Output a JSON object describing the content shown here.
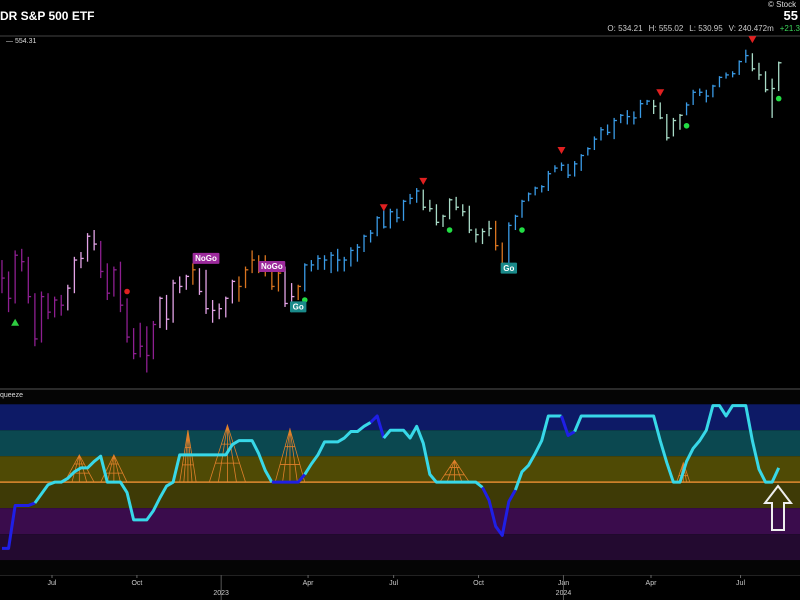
{
  "header": {
    "title": "DR S&P 500 ETF",
    "last": "55",
    "source": "© Stock",
    "price_label": "554.31",
    "ohlc": [
      {
        "label": "O:",
        "value": "534.21"
      },
      {
        "label": "H:",
        "value": "555.02"
      },
      {
        "label": "L:",
        "value": "530.95"
      },
      {
        "label": "V:",
        "value": "240.472m"
      }
    ],
    "change": "+21.3"
  },
  "chart_data": [
    {
      "type": "ohlc",
      "log_scale": true,
      "ylim": [
        340,
        575
      ],
      "xlim": [
        -0.3,
        118.5
      ],
      "close": [
        401,
        389,
        415,
        411,
        390,
        366,
        390,
        381,
        388,
        385,
        395,
        412,
        413,
        427,
        422,
        405,
        392,
        406,
        385,
        367,
        358,
        362,
        357,
        374,
        389,
        377,
        398,
        396,
        402,
        406,
        393,
        383,
        382,
        383,
        389,
        399,
        396,
        406,
        412,
        408,
        407,
        396,
        404,
        386,
        390,
        396,
        409,
        409,
        413,
        412,
        415,
        412,
        412,
        418,
        420,
        427,
        429,
        439,
        433,
        443,
        439,
        450,
        452,
        457,
        446,
        445,
        436,
        440,
        451,
        446,
        443,
        431,
        428,
        430,
        432,
        421,
        410,
        434,
        440,
        450,
        455,
        459,
        460,
        469,
        473,
        475,
        468,
        476,
        482,
        487,
        494,
        501,
        499,
        508,
        512,
        511,
        510,
        521,
        523,
        519,
        510,
        495,
        508,
        512,
        520,
        530,
        530,
        527,
        535,
        542,
        544,
        545,
        555,
        560,
        549,
        544,
        532,
        533,
        554
      ],
      "high": [
        412,
        405,
        418,
        419,
        414,
        392,
        393,
        392,
        390,
        391,
        397,
        414,
        417,
        429,
        431,
        424,
        410,
        408,
        411,
        389,
        372,
        375,
        373,
        376,
        390,
        391,
        400,
        402,
        403,
        410,
        407,
        406,
        388,
        386,
        390,
        400,
        402,
        408,
        418,
        415,
        415,
        408,
        405,
        408,
        398,
        397,
        410,
        412,
        415,
        415,
        417,
        419,
        414,
        420,
        422,
        428,
        431,
        440,
        444,
        445,
        445,
        451,
        455,
        459,
        458,
        451,
        448,
        441,
        452,
        453,
        448,
        447,
        432,
        432,
        437,
        437,
        423,
        436,
        441,
        451,
        456,
        460,
        461,
        471,
        475,
        477,
        476,
        478,
        483,
        488,
        496,
        503,
        505,
        510,
        513,
        516,
        515,
        524,
        524,
        524,
        522,
        513,
        510,
        513,
        522,
        532,
        533,
        532,
        536,
        543,
        546,
        547,
        556,
        565,
        562,
        554,
        547,
        541,
        555
      ],
      "low": [
        392,
        381,
        386,
        405,
        386,
        362,
        364,
        377,
        378,
        379,
        382,
        392,
        407,
        411,
        418,
        401,
        388,
        390,
        381,
        364,
        355,
        356,
        348,
        355,
        372,
        371,
        375,
        392,
        394,
        397,
        391,
        380,
        375,
        377,
        378,
        386,
        387,
        395,
        404,
        404,
        402,
        394,
        393,
        384,
        381,
        388,
        393,
        405,
        406,
        406,
        404,
        405,
        405,
        408,
        411,
        417,
        423,
        427,
        432,
        432,
        436,
        437,
        448,
        449,
        444,
        443,
        434,
        433,
        438,
        444,
        440,
        429,
        423,
        422,
        427,
        418,
        409,
        410,
        431,
        439,
        450,
        454,
        456,
        457,
        470,
        471,
        466,
        467,
        471,
        482,
        486,
        493,
        497,
        494,
        506,
        505,
        505,
        510,
        520,
        513,
        509,
        493,
        496,
        501,
        512,
        520,
        527,
        522,
        526,
        534,
        541,
        542,
        544,
        554,
        547,
        540,
        530,
        510,
        531
      ],
      "regimes": [
        {
          "from": 0,
          "to": 9,
          "color": "#8e1f91"
        },
        {
          "from": 10,
          "to": 14,
          "color": "#e3a3e6"
        },
        {
          "from": 15,
          "to": 23,
          "color": "#8e1f91"
        },
        {
          "from": 24,
          "to": 28,
          "color": "#e3a3e6"
        },
        {
          "from": 29,
          "to": 29,
          "color": "#d9741f"
        },
        {
          "from": 30,
          "to": 35,
          "color": "#e3a3e6"
        },
        {
          "from": 36,
          "to": 42,
          "color": "#d9741f"
        },
        {
          "from": 43,
          "to": 44,
          "color": "#e3a3e6"
        },
        {
          "from": 45,
          "to": 45,
          "color": "#d9741f"
        },
        {
          "from": 46,
          "to": 63,
          "color": "#3a9be6"
        },
        {
          "from": 64,
          "to": 74,
          "color": "#a9dcc8"
        },
        {
          "from": 75,
          "to": 76,
          "color": "#d9741f"
        },
        {
          "from": 77,
          "to": 98,
          "color": "#3a9be6"
        },
        {
          "from": 99,
          "to": 103,
          "color": "#a9dcc8"
        },
        {
          "from": 104,
          "to": 113,
          "color": "#3a9be6"
        },
        {
          "from": 114,
          "to": 118,
          "color": "#a9dcc8"
        }
      ],
      "markers": [
        {
          "shape": "triangle-up",
          "x": 2,
          "value": 375,
          "color": "#2ecc40"
        },
        {
          "shape": "dot",
          "x": 19,
          "value": 393,
          "color": "#e02020"
        },
        {
          "shape": "dot",
          "x": 46,
          "value": 388,
          "color": "#22dd44"
        },
        {
          "shape": "triangle-down",
          "x": 58,
          "value": 446,
          "color": "#e02020"
        },
        {
          "shape": "triangle-down",
          "x": 64,
          "value": 464,
          "color": "#e02020"
        },
        {
          "shape": "dot",
          "x": 68,
          "value": 431,
          "color": "#22dd44"
        },
        {
          "shape": "dot",
          "x": 79,
          "value": 431,
          "color": "#22dd44"
        },
        {
          "shape": "triangle-down",
          "x": 85,
          "value": 486,
          "color": "#e02020"
        },
        {
          "shape": "triangle-down",
          "x": 100,
          "value": 530,
          "color": "#e02020"
        },
        {
          "shape": "dot",
          "x": 104,
          "value": 504,
          "color": "#22dd44"
        },
        {
          "shape": "triangle-down",
          "x": 114,
          "value": 574,
          "color": "#e02020"
        },
        {
          "shape": "dot",
          "x": 118,
          "value": 525,
          "color": "#22dd44"
        }
      ],
      "labels": [
        {
          "text": "NoGo",
          "x": 31,
          "value": 413,
          "color": "#9c2a9c"
        },
        {
          "text": "NoGo",
          "x": 41,
          "value": 408,
          "color": "#9c2a9c"
        },
        {
          "text": "Go",
          "x": 45,
          "value": 384,
          "color": "#1a8a8a"
        },
        {
          "text": "Go",
          "x": 77,
          "value": 407,
          "color": "#1a8a8a"
        }
      ]
    },
    {
      "type": "line",
      "name": "queeze",
      "ylim": [
        -7.15,
        7.1
      ],
      "xlim": [
        -0.3,
        118.5
      ],
      "zero_line": 0,
      "zero_color": "#e08a30",
      "values": [
        -5.1,
        -5.1,
        -1.8,
        -1.8,
        -1.8,
        -1.6,
        -0.9,
        -0.2,
        0,
        0,
        0.3,
        0.8,
        1.1,
        1.1,
        1.6,
        2,
        0,
        0,
        0,
        -0.8,
        -2.9,
        -2.9,
        -2.9,
        -2.2,
        -1.2,
        -0.3,
        0,
        2.1,
        2.1,
        2.1,
        2.1,
        2.1,
        2.1,
        2.1,
        2.1,
        2.9,
        3.2,
        3.2,
        3.2,
        2.2,
        0.9,
        0,
        0,
        0,
        0,
        0,
        0.6,
        1.4,
        2.1,
        3.1,
        3.1,
        3.1,
        3.4,
        3.9,
        3.9,
        4.3,
        4.6,
        5.1,
        3.4,
        4,
        4,
        4,
        3.4,
        4.3,
        3,
        0.6,
        0,
        0,
        0,
        0,
        0,
        0,
        0,
        -0.4,
        -1.4,
        -3.4,
        -4.1,
        -1.5,
        -0.6,
        0.8,
        1.3,
        2.2,
        3.2,
        5.1,
        5.1,
        5.1,
        3.6,
        3.9,
        5.1,
        5.1,
        5.1,
        5.1,
        5.1,
        5.1,
        5.1,
        5.1,
        5.1,
        5.1,
        5.1,
        5.1,
        3.2,
        1.5,
        0,
        0,
        1.6,
        2.6,
        3.2,
        4,
        5.9,
        5.9,
        5.1,
        5.9,
        5.9,
        5.9,
        3.2,
        1,
        0,
        0,
        1.1
      ],
      "segments": [
        {
          "from": 0,
          "to": 5,
          "color": "#1f1fe6"
        },
        {
          "from": 5,
          "to": 41,
          "color": "#38d8e8"
        },
        {
          "from": 41,
          "to": 46,
          "color": "#1f1fe6"
        },
        {
          "from": 46,
          "to": 56,
          "color": "#38d8e8"
        },
        {
          "from": 56,
          "to": 58,
          "color": "#1f1fe6"
        },
        {
          "from": 58,
          "to": 73,
          "color": "#38d8e8"
        },
        {
          "from": 73,
          "to": 78,
          "color": "#1f1fe6"
        },
        {
          "from": 78,
          "to": 85,
          "color": "#38d8e8"
        },
        {
          "from": 85,
          "to": 87,
          "color": "#1f1fe6"
        },
        {
          "from": 87,
          "to": 118,
          "color": "#38d8e8"
        }
      ],
      "bands": [
        {
          "from": 4,
          "to": 6,
          "color": "#0d1a66"
        },
        {
          "from": 2,
          "to": 4,
          "color": "#0b4850"
        },
        {
          "from": 0,
          "to": 2,
          "color": "#4f4a05"
        },
        {
          "from": -2,
          "to": 0,
          "color": "#3e3a06"
        },
        {
          "from": -4,
          "to": -2,
          "color": "#3a0c4c"
        },
        {
          "from": -6,
          "to": -4,
          "color": "#230a30"
        }
      ],
      "squeeze": [
        {
          "start": 9.5,
          "end": 14,
          "level": 2.1,
          "color": "#e0802a"
        },
        {
          "start": 15,
          "end": 19,
          "level": 2.1,
          "color": "#e0802a"
        },
        {
          "start": 27,
          "end": 29.5,
          "level": 4,
          "color": "#e0802a"
        },
        {
          "start": 31.5,
          "end": 37,
          "level": 4.4,
          "color": "#e0802a"
        },
        {
          "start": 41.5,
          "end": 46,
          "level": 4.1,
          "color": "#e0802a"
        },
        {
          "start": 66.5,
          "end": 71,
          "level": 1.7,
          "color": "#e0802a"
        },
        {
          "start": 102.5,
          "end": 104.5,
          "level": 1.5,
          "color": "#e0802a"
        }
      ],
      "xticks": [
        {
          "value": 7.6,
          "label": "Jul"
        },
        {
          "value": 20.5,
          "label": "Oct"
        },
        {
          "value": 46.5,
          "label": "Apr"
        },
        {
          "value": 59.5,
          "label": "Jul"
        },
        {
          "value": 72.4,
          "label": "Oct"
        },
        {
          "value": 85.3,
          "label": "Jan"
        },
        {
          "value": 98.6,
          "label": "Apr"
        },
        {
          "value": 112.2,
          "label": "Jul"
        }
      ],
      "year_labels": [
        {
          "value": 33.3,
          "label": "2023"
        },
        {
          "value": 85.3,
          "label": "2024"
        }
      ]
    }
  ]
}
